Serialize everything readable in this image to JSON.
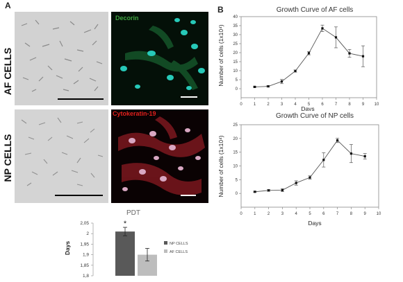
{
  "panels": {
    "a": "A",
    "b": "B"
  },
  "rows": {
    "af": "AF CELLS",
    "np": "NP CELLS"
  },
  "stains": {
    "decorin": {
      "label": "Decorin",
      "color": "#3fa33f"
    },
    "cytokeratin": {
      "label": "Cytokeratin-19",
      "color": "#e0201c"
    }
  },
  "chart_data": [
    {
      "type": "line",
      "title": "Growth Curve of AF cells",
      "xlabel": "Days",
      "ylabel": "Number of cells (1x10⁴)",
      "x": [
        1,
        2,
        3,
        4,
        5,
        6,
        7,
        8,
        9
      ],
      "y": [
        1,
        1.3,
        4,
        9.8,
        19.7,
        33.5,
        28.5,
        19.6,
        18
      ],
      "err": [
        0.3,
        0.4,
        1.2,
        0.6,
        0.9,
        1.8,
        5.8,
        2.2,
        5.8
      ],
      "xticks": [
        "0",
        "1",
        "2",
        "3",
        "4",
        "5",
        "6",
        "7",
        "8",
        "9",
        "10"
      ],
      "yticks": [
        "0",
        "5",
        "10",
        "15",
        "20",
        "25",
        "30",
        "35",
        "40"
      ],
      "xlim": [
        0,
        10
      ],
      "ylim": [
        -5,
        40
      ],
      "grid": false
    },
    {
      "type": "line",
      "title": "Growth Curve of NP cells",
      "xlabel": "Days",
      "ylabel": "Number of cells (1x10⁴)",
      "x": [
        1,
        2,
        3,
        4,
        5,
        6,
        7,
        8,
        9
      ],
      "y": [
        0.6,
        1.1,
        1.2,
        3.8,
        5.8,
        12.2,
        19.3,
        14.5,
        13.5
      ],
      "err": [
        0.2,
        0.3,
        0.5,
        0.8,
        0.6,
        2.6,
        0.8,
        3.3,
        1.0
      ],
      "xticks": [
        "0",
        "1",
        "2",
        "3",
        "4",
        "5",
        "6",
        "7",
        "8",
        "9",
        "10"
      ],
      "yticks": [
        "0",
        "5",
        "10",
        "15",
        "20",
        "25"
      ],
      "xlim": [
        0,
        10
      ],
      "ylim": [
        -5,
        25
      ],
      "grid": false
    },
    {
      "type": "bar",
      "title": "PDT",
      "ylabel": "Days",
      "categories": [
        "NP CELLS",
        "AF CELLS"
      ],
      "values": [
        2.01,
        1.9
      ],
      "err": [
        0.02,
        0.03
      ],
      "colors": [
        "#595959",
        "#bdbdbd"
      ],
      "yticks": [
        "1,8",
        "1,85",
        "1,9",
        "1,95",
        "2",
        "2,05"
      ],
      "ylim": [
        1.8,
        2.05
      ],
      "annotation": "*",
      "legend": "right"
    }
  ]
}
